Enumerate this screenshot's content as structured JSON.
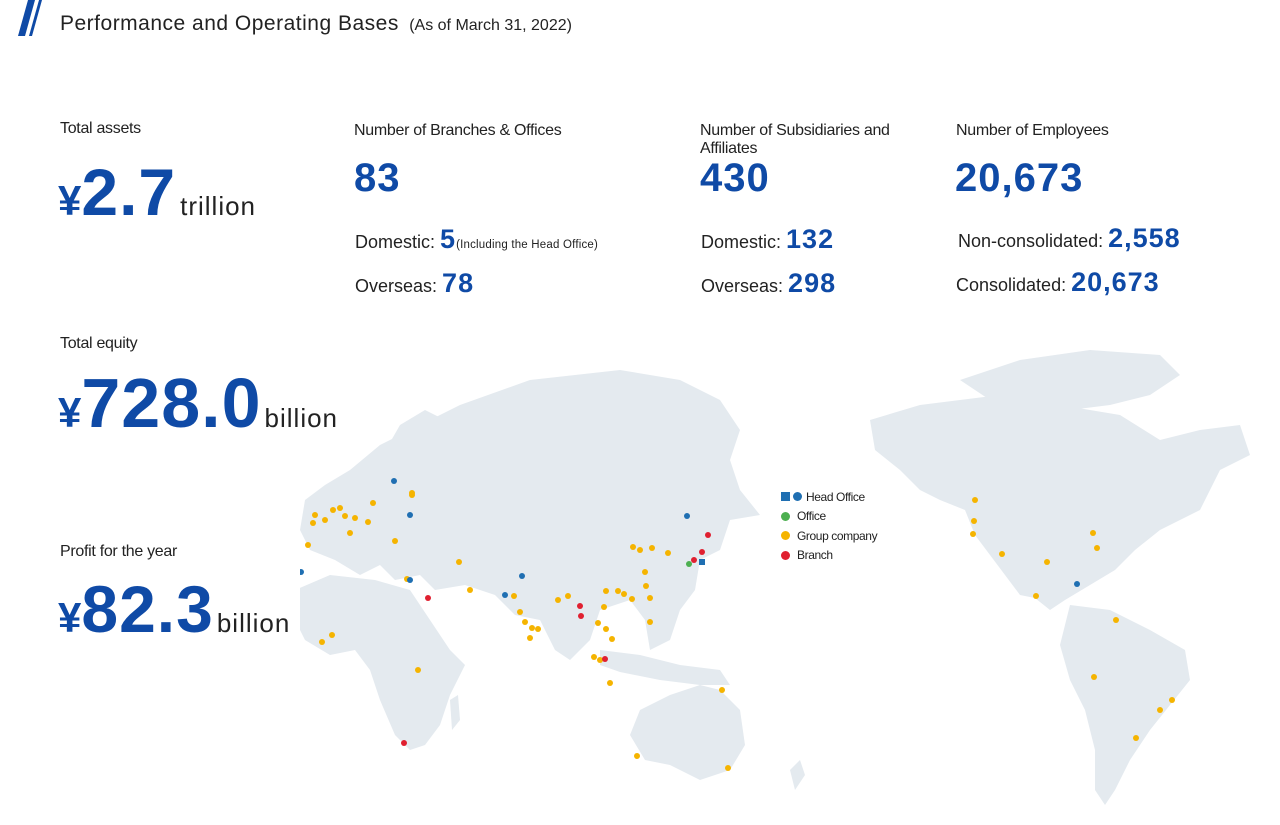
{
  "header": {
    "title": "Performance and Operating Bases",
    "date_note": "(As of March 31, 2022)"
  },
  "total_assets": {
    "label": "Total assets",
    "currency": "¥",
    "value": "2.7",
    "unit": "trillion"
  },
  "total_equity": {
    "label": "Total equity",
    "currency": "¥",
    "value": "728.0",
    "unit": "billion"
  },
  "profit": {
    "label": "Profit for the year",
    "currency": "¥",
    "value": "82.3",
    "unit": "billion"
  },
  "branches": {
    "label": "Number of Branches & Offices",
    "total": "83",
    "domestic_label": "Domestic:",
    "domestic_value": "5",
    "domestic_note": "(Including the Head Office)",
    "overseas_label": "Overseas:",
    "overseas_value": "78"
  },
  "subsidiaries": {
    "label_line1": "Number of Subsidiaries and",
    "label_line2": "Affiliates",
    "total": "430",
    "domestic_label": "Domestic:",
    "domestic_value": "132",
    "overseas_label": "Overseas:",
    "overseas_value": "298"
  },
  "employees": {
    "label": "Number of Employees",
    "total": "20,673",
    "nonconsolidated_label": "Non-consolidated:",
    "nonconsolidated_value": "2,558",
    "consolidated_label": "Consolidated:",
    "consolidated_value": "20,673"
  },
  "legend": {
    "head_office": "Head Office",
    "office": "Office",
    "group_company": "Group company",
    "branch": "Branch"
  },
  "colors": {
    "accent_blue": "#0f4aa6",
    "head_office": "#1f6fb2",
    "office": "#4caf50",
    "group_company": "#f5b400",
    "branch": "#e02030",
    "land": "#e4eaef"
  }
}
